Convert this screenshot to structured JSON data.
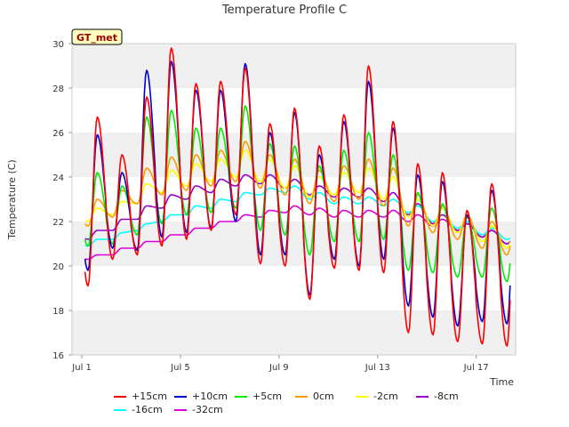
{
  "chart_data": {
    "type": "line",
    "title": "Temperature Profile C",
    "xlabel": "Time",
    "ylabel": "Temperature (C)",
    "badge": "GT_met",
    "ylim": [
      16,
      30
    ],
    "yticks": [
      "16",
      "18",
      "20",
      "22",
      "24",
      "26",
      "28",
      "30"
    ],
    "xlim_days": [
      0.6,
      18.6
    ],
    "xticks": [
      {
        "day": 1,
        "label": "Jul 1"
      },
      {
        "day": 5,
        "label": "Jul 5"
      },
      {
        "day": 9,
        "label": "Jul 9"
      },
      {
        "day": 13,
        "label": "Jul 13"
      },
      {
        "day": 17,
        "label": "Jul 17"
      }
    ],
    "grid": "alternating horizontal bands",
    "legend_position": "bottom",
    "series": [
      {
        "name": "+15cm",
        "color": "#ff0000",
        "daily": [
          {
            "min": 19.1,
            "max": 26.7
          },
          {
            "min": 20.3,
            "max": 25.0
          },
          {
            "min": 20.5,
            "max": 27.6
          },
          {
            "min": 20.9,
            "max": 29.8
          },
          {
            "min": 21.2,
            "max": 28.2
          },
          {
            "min": 21.6,
            "max": 28.3
          },
          {
            "min": 22.3,
            "max": 28.9
          },
          {
            "min": 20.1,
            "max": 26.4
          },
          {
            "min": 20.0,
            "max": 27.1
          },
          {
            "min": 18.5,
            "max": 25.4
          },
          {
            "min": 19.9,
            "max": 26.8
          },
          {
            "min": 19.8,
            "max": 29.0
          },
          {
            "min": 19.7,
            "max": 26.5
          },
          {
            "min": 17.0,
            "max": 24.6
          },
          {
            "min": 16.9,
            "max": 24.2
          },
          {
            "min": 16.6,
            "max": 22.5
          },
          {
            "min": 16.5,
            "max": 23.7
          },
          {
            "min": 16.4,
            "max": 24.7
          }
        ]
      },
      {
        "name": "+10cm",
        "color": "#0000cc",
        "daily": [
          {
            "min": 19.8,
            "max": 25.9
          },
          {
            "min": 20.8,
            "max": 24.2
          },
          {
            "min": 20.7,
            "max": 28.8
          },
          {
            "min": 21.3,
            "max": 29.2
          },
          {
            "min": 21.5,
            "max": 27.9
          },
          {
            "min": 21.7,
            "max": 27.9
          },
          {
            "min": 22.0,
            "max": 29.1
          },
          {
            "min": 20.5,
            "max": 26.0
          },
          {
            "min": 20.5,
            "max": 26.9
          },
          {
            "min": 18.7,
            "max": 25.0
          },
          {
            "min": 20.3,
            "max": 26.5
          },
          {
            "min": 20.0,
            "max": 28.3
          },
          {
            "min": 20.3,
            "max": 26.2
          },
          {
            "min": 18.2,
            "max": 24.1
          },
          {
            "min": 17.7,
            "max": 23.8
          },
          {
            "min": 17.3,
            "max": 22.3
          },
          {
            "min": 17.5,
            "max": 23.4
          },
          {
            "min": 17.4,
            "max": 24.3
          }
        ]
      },
      {
        "name": "+5cm",
        "color": "#00ee00",
        "daily": [
          {
            "min": 20.9,
            "max": 24.2
          },
          {
            "min": 21.0,
            "max": 23.6
          },
          {
            "min": 21.4,
            "max": 26.7
          },
          {
            "min": 21.9,
            "max": 27.0
          },
          {
            "min": 22.3,
            "max": 26.2
          },
          {
            "min": 22.4,
            "max": 26.2
          },
          {
            "min": 22.6,
            "max": 27.2
          },
          {
            "min": 21.6,
            "max": 25.5
          },
          {
            "min": 21.4,
            "max": 25.4
          },
          {
            "min": 20.5,
            "max": 24.5
          },
          {
            "min": 21.1,
            "max": 25.2
          },
          {
            "min": 21.1,
            "max": 26.0
          },
          {
            "min": 21.2,
            "max": 25.0
          },
          {
            "min": 19.8,
            "max": 23.3
          },
          {
            "min": 19.7,
            "max": 22.8
          },
          {
            "min": 19.5,
            "max": 22.2
          },
          {
            "min": 19.5,
            "max": 22.6
          },
          {
            "min": 19.3,
            "max": 22.6
          }
        ]
      },
      {
        "name": "0cm",
        "color": "#ff9900",
        "daily": [
          {
            "min": 21.8,
            "max": 23.0
          },
          {
            "min": 22.2,
            "max": 23.4
          },
          {
            "min": 22.8,
            "max": 24.4
          },
          {
            "min": 23.2,
            "max": 24.9
          },
          {
            "min": 23.4,
            "max": 25.0
          },
          {
            "min": 23.6,
            "max": 25.2
          },
          {
            "min": 23.8,
            "max": 25.6
          },
          {
            "min": 23.5,
            "max": 25.0
          },
          {
            "min": 23.2,
            "max": 24.8
          },
          {
            "min": 22.8,
            "max": 24.3
          },
          {
            "min": 22.9,
            "max": 24.5
          },
          {
            "min": 23.0,
            "max": 24.8
          },
          {
            "min": 22.7,
            "max": 24.4
          },
          {
            "min": 21.8,
            "max": 23.2
          },
          {
            "min": 21.5,
            "max": 22.7
          },
          {
            "min": 21.2,
            "max": 22.3
          },
          {
            "min": 20.8,
            "max": 22.0
          },
          {
            "min": 20.5,
            "max": 22.1
          }
        ]
      },
      {
        "name": "-2cm",
        "color": "#ffff00",
        "daily": [
          {
            "min": 22.0,
            "max": 22.6
          },
          {
            "min": 22.3,
            "max": 22.9
          },
          {
            "min": 22.8,
            "max": 23.7
          },
          {
            "min": 23.3,
            "max": 24.3
          },
          {
            "min": 23.6,
            "max": 24.6
          },
          {
            "min": 23.8,
            "max": 24.8
          },
          {
            "min": 24.0,
            "max": 25.2
          },
          {
            "min": 23.8,
            "max": 24.8
          },
          {
            "min": 23.5,
            "max": 24.5
          },
          {
            "min": 23.1,
            "max": 24.0
          },
          {
            "min": 23.2,
            "max": 24.2
          },
          {
            "min": 23.3,
            "max": 24.4
          },
          {
            "min": 23.0,
            "max": 24.0
          },
          {
            "min": 22.2,
            "max": 23.0
          },
          {
            "min": 21.8,
            "max": 22.6
          },
          {
            "min": 21.5,
            "max": 22.2
          },
          {
            "min": 21.1,
            "max": 21.8
          },
          {
            "min": 20.8,
            "max": 21.9
          }
        ]
      },
      {
        "name": "-8cm",
        "color": "#9900cc",
        "daily": [
          {
            "min": 21.2,
            "max": 21.6
          },
          {
            "min": 21.6,
            "max": 22.1
          },
          {
            "min": 22.1,
            "max": 22.7
          },
          {
            "min": 22.6,
            "max": 23.2
          },
          {
            "min": 23.0,
            "max": 23.6
          },
          {
            "min": 23.3,
            "max": 23.9
          },
          {
            "min": 23.6,
            "max": 24.1
          },
          {
            "min": 23.7,
            "max": 24.1
          },
          {
            "min": 23.5,
            "max": 23.9
          },
          {
            "min": 23.2,
            "max": 23.6
          },
          {
            "min": 23.1,
            "max": 23.5
          },
          {
            "min": 23.1,
            "max": 23.5
          },
          {
            "min": 22.9,
            "max": 23.3
          },
          {
            "min": 22.3,
            "max": 22.8
          },
          {
            "min": 21.9,
            "max": 22.3
          },
          {
            "min": 21.6,
            "max": 21.9
          },
          {
            "min": 21.3,
            "max": 21.6
          },
          {
            "min": 21.0,
            "max": 21.4
          }
        ]
      },
      {
        "name": "-16cm",
        "color": "#00ffff",
        "daily": [
          {
            "min": 20.9,
            "max": 21.2
          },
          {
            "min": 21.2,
            "max": 21.5
          },
          {
            "min": 21.6,
            "max": 21.9
          },
          {
            "min": 22.0,
            "max": 22.3
          },
          {
            "min": 22.3,
            "max": 22.7
          },
          {
            "min": 22.6,
            "max": 23.0
          },
          {
            "min": 22.9,
            "max": 23.3
          },
          {
            "min": 23.2,
            "max": 23.5
          },
          {
            "min": 23.3,
            "max": 23.6
          },
          {
            "min": 23.0,
            "max": 23.3
          },
          {
            "min": 22.8,
            "max": 23.1
          },
          {
            "min": 22.8,
            "max": 23.1
          },
          {
            "min": 22.7,
            "max": 23.0
          },
          {
            "min": 22.4,
            "max": 22.7
          },
          {
            "min": 22.0,
            "max": 22.3
          },
          {
            "min": 21.7,
            "max": 22.0
          },
          {
            "min": 21.4,
            "max": 21.7
          },
          {
            "min": 21.2,
            "max": 21.4
          }
        ]
      },
      {
        "name": "-32cm",
        "color": "#dd00dd",
        "daily": [
          {
            "min": 20.3,
            "max": 20.5
          },
          {
            "min": 20.5,
            "max": 20.8
          },
          {
            "min": 20.8,
            "max": 21.1
          },
          {
            "min": 21.1,
            "max": 21.4
          },
          {
            "min": 21.4,
            "max": 21.7
          },
          {
            "min": 21.7,
            "max": 22.0
          },
          {
            "min": 22.0,
            "max": 22.3
          },
          {
            "min": 22.2,
            "max": 22.5
          },
          {
            "min": 22.4,
            "max": 22.7
          },
          {
            "min": 22.3,
            "max": 22.6
          },
          {
            "min": 22.2,
            "max": 22.5
          },
          {
            "min": 22.2,
            "max": 22.5
          },
          {
            "min": 22.2,
            "max": 22.5
          },
          {
            "min": 22.0,
            "max": 22.3
          },
          {
            "min": 21.8,
            "max": 22.1
          },
          {
            "min": 21.6,
            "max": 21.9
          },
          {
            "min": 21.3,
            "max": 21.6
          },
          {
            "min": 21.0,
            "max": 21.3
          }
        ]
      }
    ]
  }
}
